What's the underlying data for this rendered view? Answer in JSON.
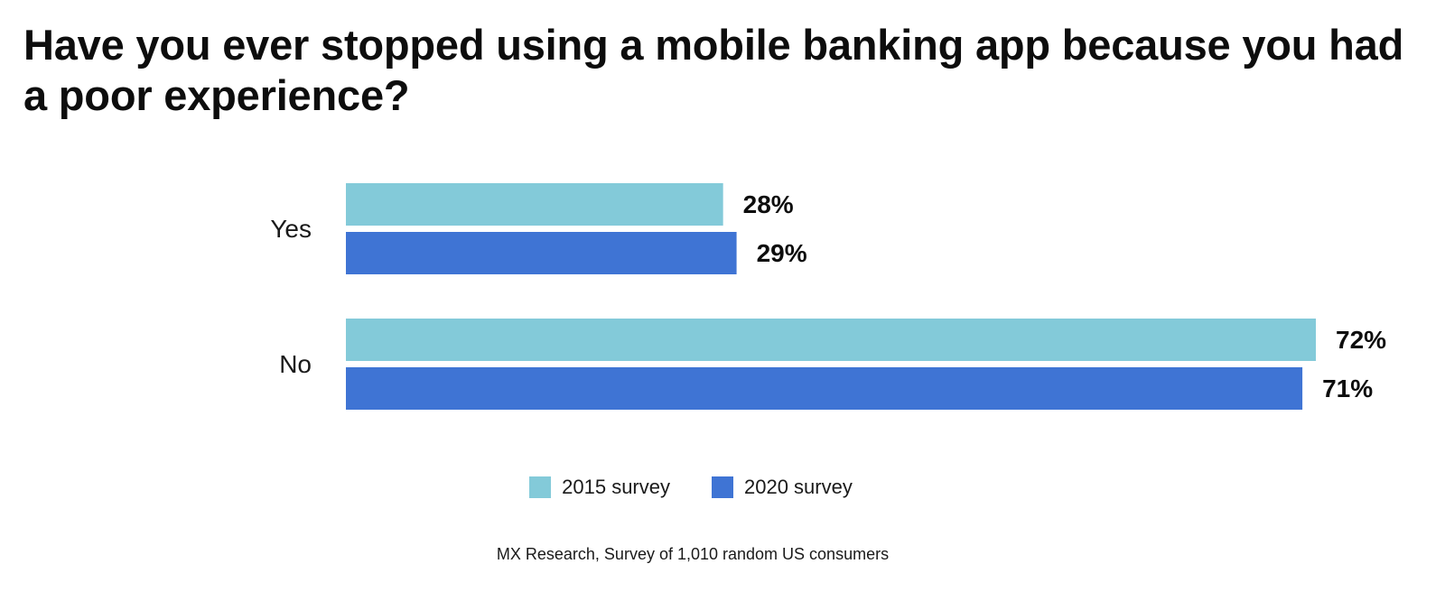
{
  "chart_data": {
    "type": "bar",
    "orientation": "horizontal",
    "title": "Have you ever stopped using a mobile banking app because you had a poor experience?",
    "categories": [
      "Yes",
      "No"
    ],
    "series": [
      {
        "name": "2015 survey",
        "color": "#83CAD9",
        "values": [
          28,
          72
        ],
        "labels": [
          "28%",
          "72%"
        ]
      },
      {
        "name": "2020 survey",
        "color": "#3F74D4",
        "values": [
          29,
          71
        ],
        "labels": [
          "29%",
          "71%"
        ]
      }
    ],
    "xlim": [
      0,
      72
    ],
    "grid": false,
    "legend": "bottom-center",
    "source": "MX Research, Survey of 1,010 random US consumers"
  }
}
